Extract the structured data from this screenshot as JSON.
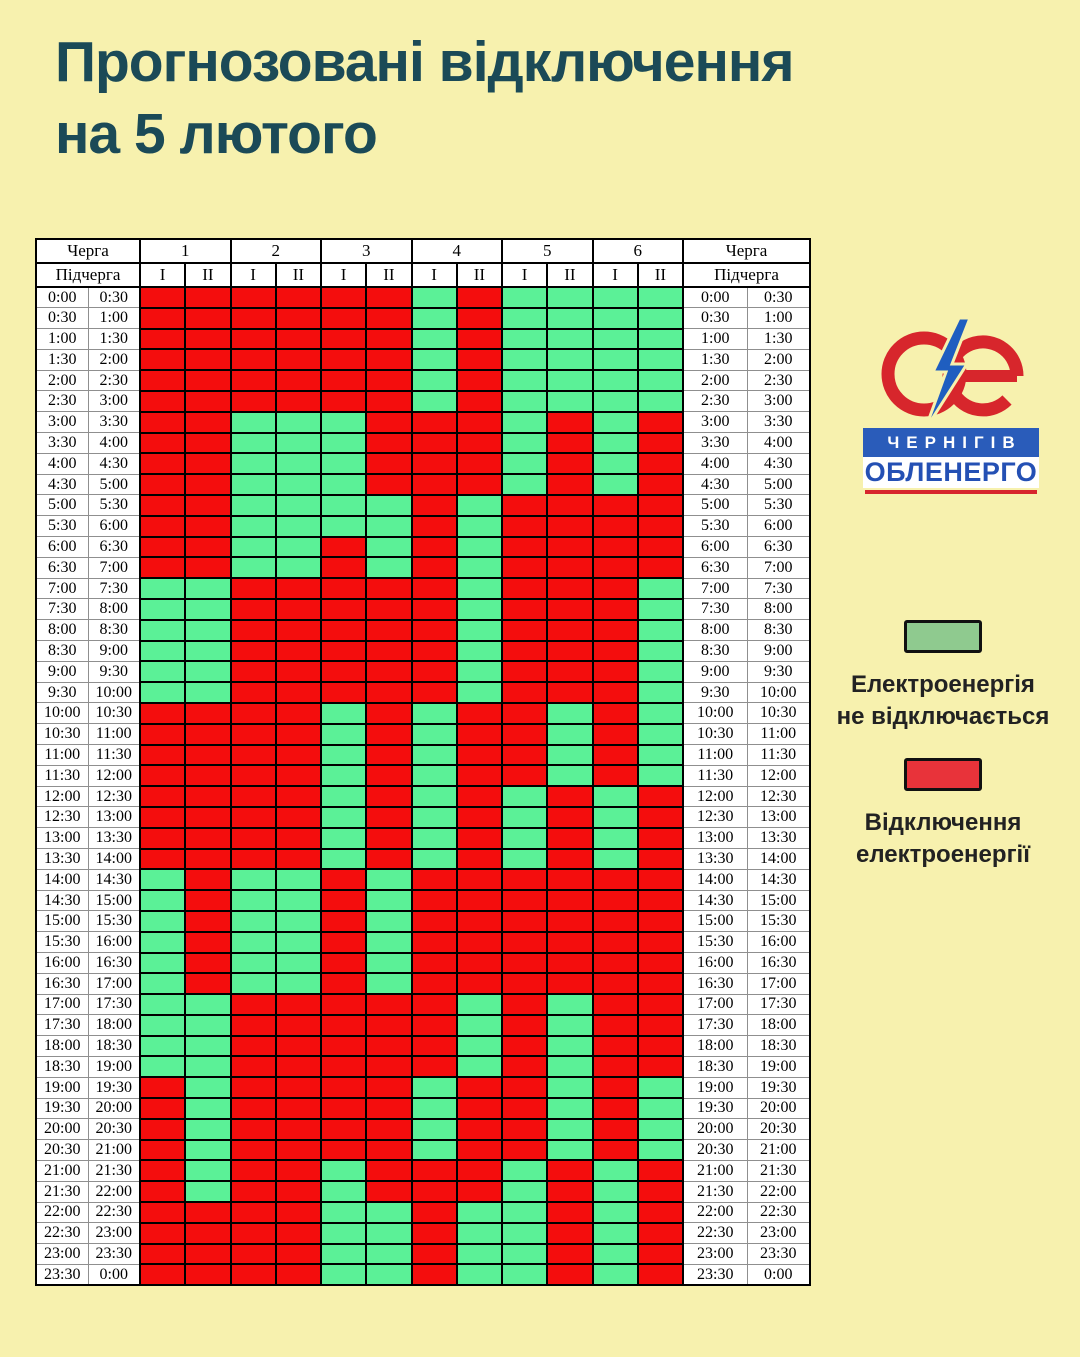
{
  "page": {
    "background_color": "#F7F1AE"
  },
  "title": {
    "line1": "Прогнозовані відключення",
    "line2": "на 5 лютого",
    "color": "#1B4A57"
  },
  "logo": {
    "monogram": "Oe",
    "bolt_icon": "lightning-bolt",
    "city": "ЧЕРНІГІВ",
    "company": "ОБЛЕНЕРГО",
    "red": "#D7262C",
    "blue": "#1F5EC0"
  },
  "legend": {
    "on": {
      "swatch_color": "#8FCA8F",
      "label": "Електроенергія\nне відключається"
    },
    "off": {
      "swatch_color": "#E8333A",
      "label": "Відключення\nелектроенергії"
    }
  },
  "table": {
    "queue_label": "Черга",
    "subqueue_label": "Підчерга",
    "groups": [
      "1",
      "2",
      "3",
      "4",
      "5",
      "6"
    ],
    "subqueues": [
      "I",
      "II"
    ],
    "cell_colors": {
      "R": "#F40D0D",
      "G": "#5BF197"
    }
  },
  "chart_data": {
    "type": "heatmap",
    "title": "Прогнозовані відключення на 5 лютого",
    "columns": [
      "1-I",
      "1-II",
      "2-I",
      "2-II",
      "3-I",
      "3-II",
      "4-I",
      "4-II",
      "5-I",
      "5-II",
      "6-I",
      "6-II"
    ],
    "legend": {
      "G": "Електроенергія не відключається",
      "R": "Відключення електроенергії"
    },
    "rows": [
      {
        "start": "0:00",
        "end": "0:30",
        "cells": "RRRRRRGRGGGG"
      },
      {
        "start": "0:30",
        "end": "1:00",
        "cells": "RRRRRRGRGGGG"
      },
      {
        "start": "1:00",
        "end": "1:30",
        "cells": "RRRRRRGRGGGG"
      },
      {
        "start": "1:30",
        "end": "2:00",
        "cells": "RRRRRRGRGGGG"
      },
      {
        "start": "2:00",
        "end": "2:30",
        "cells": "RRRRRRGRGGGG"
      },
      {
        "start": "2:30",
        "end": "3:00",
        "cells": "RRRRRRGRGGGG"
      },
      {
        "start": "3:00",
        "end": "3:30",
        "cells": "RRGGGRRRGRGR"
      },
      {
        "start": "3:30",
        "end": "4:00",
        "cells": "RRGGGRRRGRGR"
      },
      {
        "start": "4:00",
        "end": "4:30",
        "cells": "RRGGGRRRGRGR"
      },
      {
        "start": "4:30",
        "end": "5:00",
        "cells": "RRGGGRRRGRGR"
      },
      {
        "start": "5:00",
        "end": "5:30",
        "cells": "RRGGGGRGRRRR"
      },
      {
        "start": "5:30",
        "end": "6:00",
        "cells": "RRGGGGRGRRRR"
      },
      {
        "start": "6:00",
        "end": "6:30",
        "cells": "RRGGRGRGRRRR"
      },
      {
        "start": "6:30",
        "end": "7:00",
        "cells": "RRGGRGRGRRRR"
      },
      {
        "start": "7:00",
        "end": "7:30",
        "cells": "GGRRRRRGRRRG"
      },
      {
        "start": "7:30",
        "end": "8:00",
        "cells": "GGRRRRRGRRRG"
      },
      {
        "start": "8:00",
        "end": "8:30",
        "cells": "GGRRRRRGRRRG"
      },
      {
        "start": "8:30",
        "end": "9:00",
        "cells": "GGRRRRRGRRRG"
      },
      {
        "start": "9:00",
        "end": "9:30",
        "cells": "GGRRRRRGRRRG"
      },
      {
        "start": "9:30",
        "end": "10:00",
        "cells": "GGRRRRRGRRRG"
      },
      {
        "start": "10:00",
        "end": "10:30",
        "cells": "RRRRGRGRRGRG"
      },
      {
        "start": "10:30",
        "end": "11:00",
        "cells": "RRRRGRGRRGRG"
      },
      {
        "start": "11:00",
        "end": "11:30",
        "cells": "RRRRGRGRRGRG"
      },
      {
        "start": "11:30",
        "end": "12:00",
        "cells": "RRRRGRGRRGRG"
      },
      {
        "start": "12:00",
        "end": "12:30",
        "cells": "RRRRGRGRGRGR"
      },
      {
        "start": "12:30",
        "end": "13:00",
        "cells": "RRRRGRGRGRGR"
      },
      {
        "start": "13:00",
        "end": "13:30",
        "cells": "RRRRGRGRGRGR"
      },
      {
        "start": "13:30",
        "end": "14:00",
        "cells": "RRRRGRGRGRGR"
      },
      {
        "start": "14:00",
        "end": "14:30",
        "cells": "GRGGRGRRRRRR"
      },
      {
        "start": "14:30",
        "end": "15:00",
        "cells": "GRGGRGRRRRRR"
      },
      {
        "start": "15:00",
        "end": "15:30",
        "cells": "GRGGRGRRRRRR"
      },
      {
        "start": "15:30",
        "end": "16:00",
        "cells": "GRGGRGRRRRRR"
      },
      {
        "start": "16:00",
        "end": "16:30",
        "cells": "GRGGRGRRRRRR"
      },
      {
        "start": "16:30",
        "end": "17:00",
        "cells": "GRGGRGRRRRRR"
      },
      {
        "start": "17:00",
        "end": "17:30",
        "cells": "GGRRRRRGRGRR"
      },
      {
        "start": "17:30",
        "end": "18:00",
        "cells": "GGRRRRRGRGRR"
      },
      {
        "start": "18:00",
        "end": "18:30",
        "cells": "GGRRRRRGRGRR"
      },
      {
        "start": "18:30",
        "end": "19:00",
        "cells": "GGRRRRRGRGRR"
      },
      {
        "start": "19:00",
        "end": "19:30",
        "cells": "RGRRRRGRRGRG"
      },
      {
        "start": "19:30",
        "end": "20:00",
        "cells": "RGRRRRGRRGRG"
      },
      {
        "start": "20:00",
        "end": "20:30",
        "cells": "RGRRRRGRRGRG"
      },
      {
        "start": "20:30",
        "end": "21:00",
        "cells": "RGRRRRGRRGRG"
      },
      {
        "start": "21:00",
        "end": "21:30",
        "cells": "RGRRGRRRGRGR"
      },
      {
        "start": "21:30",
        "end": "22:00",
        "cells": "RGRRGRRRGRGR"
      },
      {
        "start": "22:00",
        "end": "22:30",
        "cells": "RRRRGGRGGRGR"
      },
      {
        "start": "22:30",
        "end": "23:00",
        "cells": "RRRRGGRGGRGR"
      },
      {
        "start": "23:00",
        "end": "23:30",
        "cells": "RRRRGGRGGRGR"
      },
      {
        "start": "23:30",
        "end": "0:00",
        "cells": "RRRRGGRGGRGR"
      }
    ]
  }
}
